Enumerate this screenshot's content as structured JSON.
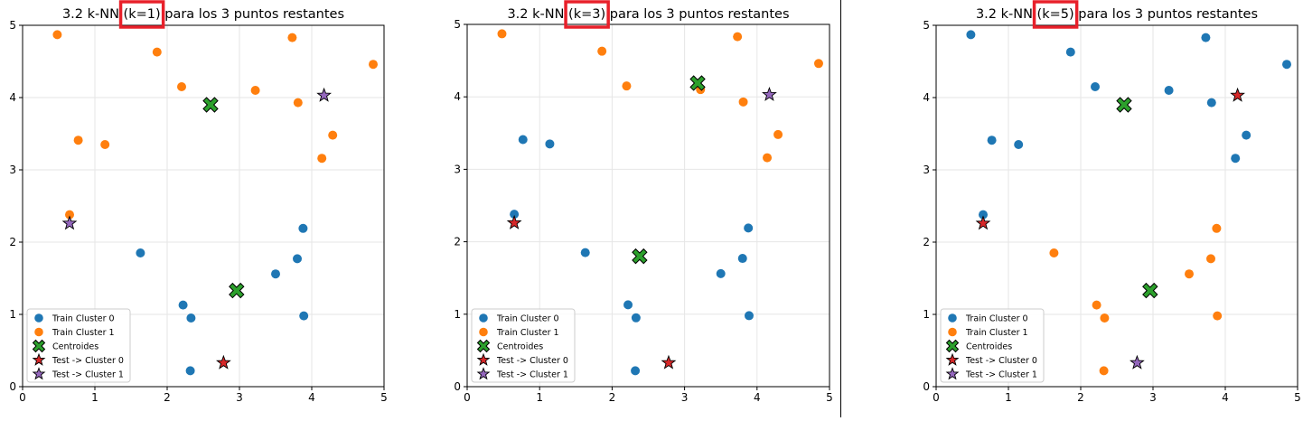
{
  "colors": {
    "cluster0": "#1f77b4",
    "cluster1": "#ff7f0e",
    "centroid": "#2ca02c",
    "test0": "#d62728",
    "test1": "#9467bd",
    "highlight": "#e8202a",
    "grid": "#e6e6e6"
  },
  "chart_data": [
    {
      "type": "scatter",
      "title": "3.2 k-NN (k=1) para los 3 puntos restantes",
      "title_parts": [
        "3.2 k-NN ",
        "(k=1)",
        " para los 3 puntos restantes"
      ],
      "xlim": [
        0,
        5
      ],
      "ylim": [
        0,
        5
      ],
      "xticks": [
        "0",
        "1",
        "2",
        "3",
        "4",
        "5"
      ],
      "yticks": [
        "0",
        "1",
        "2",
        "3",
        "4",
        "5"
      ],
      "grid": true,
      "legend_position": "lower-left",
      "legend": [
        "Train Cluster 0",
        "Train Cluster 1",
        "Centroides",
        "Test -> Cluster 0",
        "Test -> Cluster 1"
      ],
      "series": [
        {
          "name": "Train Cluster 0",
          "marker": "circle",
          "color": "cluster0",
          "points": [
            [
              1.63,
              1.85
            ],
            [
              2.22,
              1.13
            ],
            [
              2.33,
              0.95
            ],
            [
              2.32,
              0.22
            ],
            [
              3.5,
              1.56
            ],
            [
              3.8,
              1.77
            ],
            [
              3.88,
              2.19
            ],
            [
              3.89,
              0.98
            ]
          ]
        },
        {
          "name": "Train Cluster 1",
          "marker": "circle",
          "color": "cluster1",
          "points": [
            [
              0.48,
              4.87
            ],
            [
              1.86,
              4.63
            ],
            [
              2.2,
              4.15
            ],
            [
              3.73,
              4.83
            ],
            [
              4.85,
              4.46
            ],
            [
              3.22,
              4.1
            ],
            [
              3.81,
              3.93
            ],
            [
              0.77,
              3.41
            ],
            [
              1.14,
              3.35
            ],
            [
              4.29,
              3.48
            ],
            [
              4.14,
              3.16
            ],
            [
              0.65,
              2.38
            ]
          ]
        },
        {
          "name": "Centroides",
          "marker": "x",
          "color": "centroid",
          "points": [
            [
              2.6,
              3.9
            ],
            [
              2.96,
              1.33
            ]
          ]
        },
        {
          "name": "Test -> Cluster 0",
          "marker": "star",
          "color": "test0",
          "points": [
            [
              2.78,
              0.33
            ]
          ]
        },
        {
          "name": "Test -> Cluster 1",
          "marker": "star",
          "color": "test1",
          "points": [
            [
              0.65,
              2.26
            ],
            [
              4.17,
              4.03
            ]
          ]
        }
      ]
    },
    {
      "type": "scatter",
      "title": "3.2 k-NN (k=3) para los 3 puntos restantes",
      "title_parts": [
        "3.2 k-NN ",
        "(k=3)",
        " para los 3 puntos restantes"
      ],
      "xlim": [
        0,
        5
      ],
      "ylim": [
        0,
        5
      ],
      "xticks": [
        "0",
        "1",
        "2",
        "3",
        "4",
        "5"
      ],
      "yticks": [
        "0",
        "1",
        "2",
        "3",
        "4",
        "5"
      ],
      "grid": true,
      "legend_position": "lower-left",
      "legend": [
        "Train Cluster 0",
        "Train Cluster 1",
        "Centroides",
        "Test -> Cluster 0",
        "Test -> Cluster 1"
      ],
      "series": [
        {
          "name": "Train Cluster 0",
          "marker": "circle",
          "color": "cluster0",
          "points": [
            [
              1.63,
              1.85
            ],
            [
              2.22,
              1.13
            ],
            [
              2.33,
              0.95
            ],
            [
              2.32,
              0.22
            ],
            [
              3.5,
              1.56
            ],
            [
              3.8,
              1.77
            ],
            [
              3.88,
              2.19
            ],
            [
              3.89,
              0.98
            ],
            [
              0.77,
              3.41
            ],
            [
              1.14,
              3.35
            ],
            [
              0.65,
              2.38
            ]
          ]
        },
        {
          "name": "Train Cluster 1",
          "marker": "circle",
          "color": "cluster1",
          "points": [
            [
              0.48,
              4.87
            ],
            [
              1.86,
              4.63
            ],
            [
              2.2,
              4.15
            ],
            [
              3.73,
              4.83
            ],
            [
              4.85,
              4.46
            ],
            [
              3.22,
              4.1
            ],
            [
              3.81,
              3.93
            ],
            [
              4.29,
              3.48
            ],
            [
              4.14,
              3.16
            ]
          ]
        },
        {
          "name": "Centroides",
          "marker": "x",
          "color": "centroid",
          "points": [
            [
              3.18,
              4.19
            ],
            [
              2.38,
              1.8
            ]
          ]
        },
        {
          "name": "Test -> Cluster 0",
          "marker": "star",
          "color": "test0",
          "points": [
            [
              0.65,
              2.26
            ],
            [
              2.78,
              0.33
            ]
          ]
        },
        {
          "name": "Test -> Cluster 1",
          "marker": "star",
          "color": "test1",
          "points": [
            [
              4.17,
              4.03
            ]
          ]
        }
      ]
    },
    {
      "type": "scatter",
      "title": "3.2 k-NN (k=5) para los 3 puntos restantes",
      "title_parts": [
        "3.2 k-NN ",
        "(k=5)",
        " para los 3 puntos restantes"
      ],
      "xlim": [
        0,
        5
      ],
      "ylim": [
        0,
        5
      ],
      "xticks": [
        "0",
        "1",
        "2",
        "3",
        "4",
        "5"
      ],
      "yticks": [
        "0",
        "1",
        "2",
        "3",
        "4",
        "5"
      ],
      "grid": true,
      "legend_position": "lower-left",
      "legend": [
        "Train Cluster 0",
        "Train Cluster 1",
        "Centroides",
        "Test -> Cluster 0",
        "Test -> Cluster 1"
      ],
      "series": [
        {
          "name": "Train Cluster 0",
          "marker": "circle",
          "color": "cluster0",
          "points": [
            [
              0.48,
              4.87
            ],
            [
              1.86,
              4.63
            ],
            [
              2.2,
              4.15
            ],
            [
              3.73,
              4.83
            ],
            [
              4.85,
              4.46
            ],
            [
              3.22,
              4.1
            ],
            [
              3.81,
              3.93
            ],
            [
              0.77,
              3.41
            ],
            [
              1.14,
              3.35
            ],
            [
              4.29,
              3.48
            ],
            [
              4.14,
              3.16
            ],
            [
              0.65,
              2.38
            ]
          ]
        },
        {
          "name": "Train Cluster 1",
          "marker": "circle",
          "color": "cluster1",
          "points": [
            [
              1.63,
              1.85
            ],
            [
              2.22,
              1.13
            ],
            [
              2.33,
              0.95
            ],
            [
              2.32,
              0.22
            ],
            [
              3.5,
              1.56
            ],
            [
              3.8,
              1.77
            ],
            [
              3.88,
              2.19
            ],
            [
              3.89,
              0.98
            ]
          ]
        },
        {
          "name": "Centroides",
          "marker": "x",
          "color": "centroid",
          "points": [
            [
              2.6,
              3.9
            ],
            [
              2.96,
              1.33
            ]
          ]
        },
        {
          "name": "Test -> Cluster 0",
          "marker": "star",
          "color": "test0",
          "points": [
            [
              0.65,
              2.26
            ],
            [
              4.17,
              4.03
            ]
          ]
        },
        {
          "name": "Test -> Cluster 1",
          "marker": "star",
          "color": "test1",
          "points": [
            [
              2.78,
              0.33
            ]
          ]
        }
      ]
    }
  ]
}
